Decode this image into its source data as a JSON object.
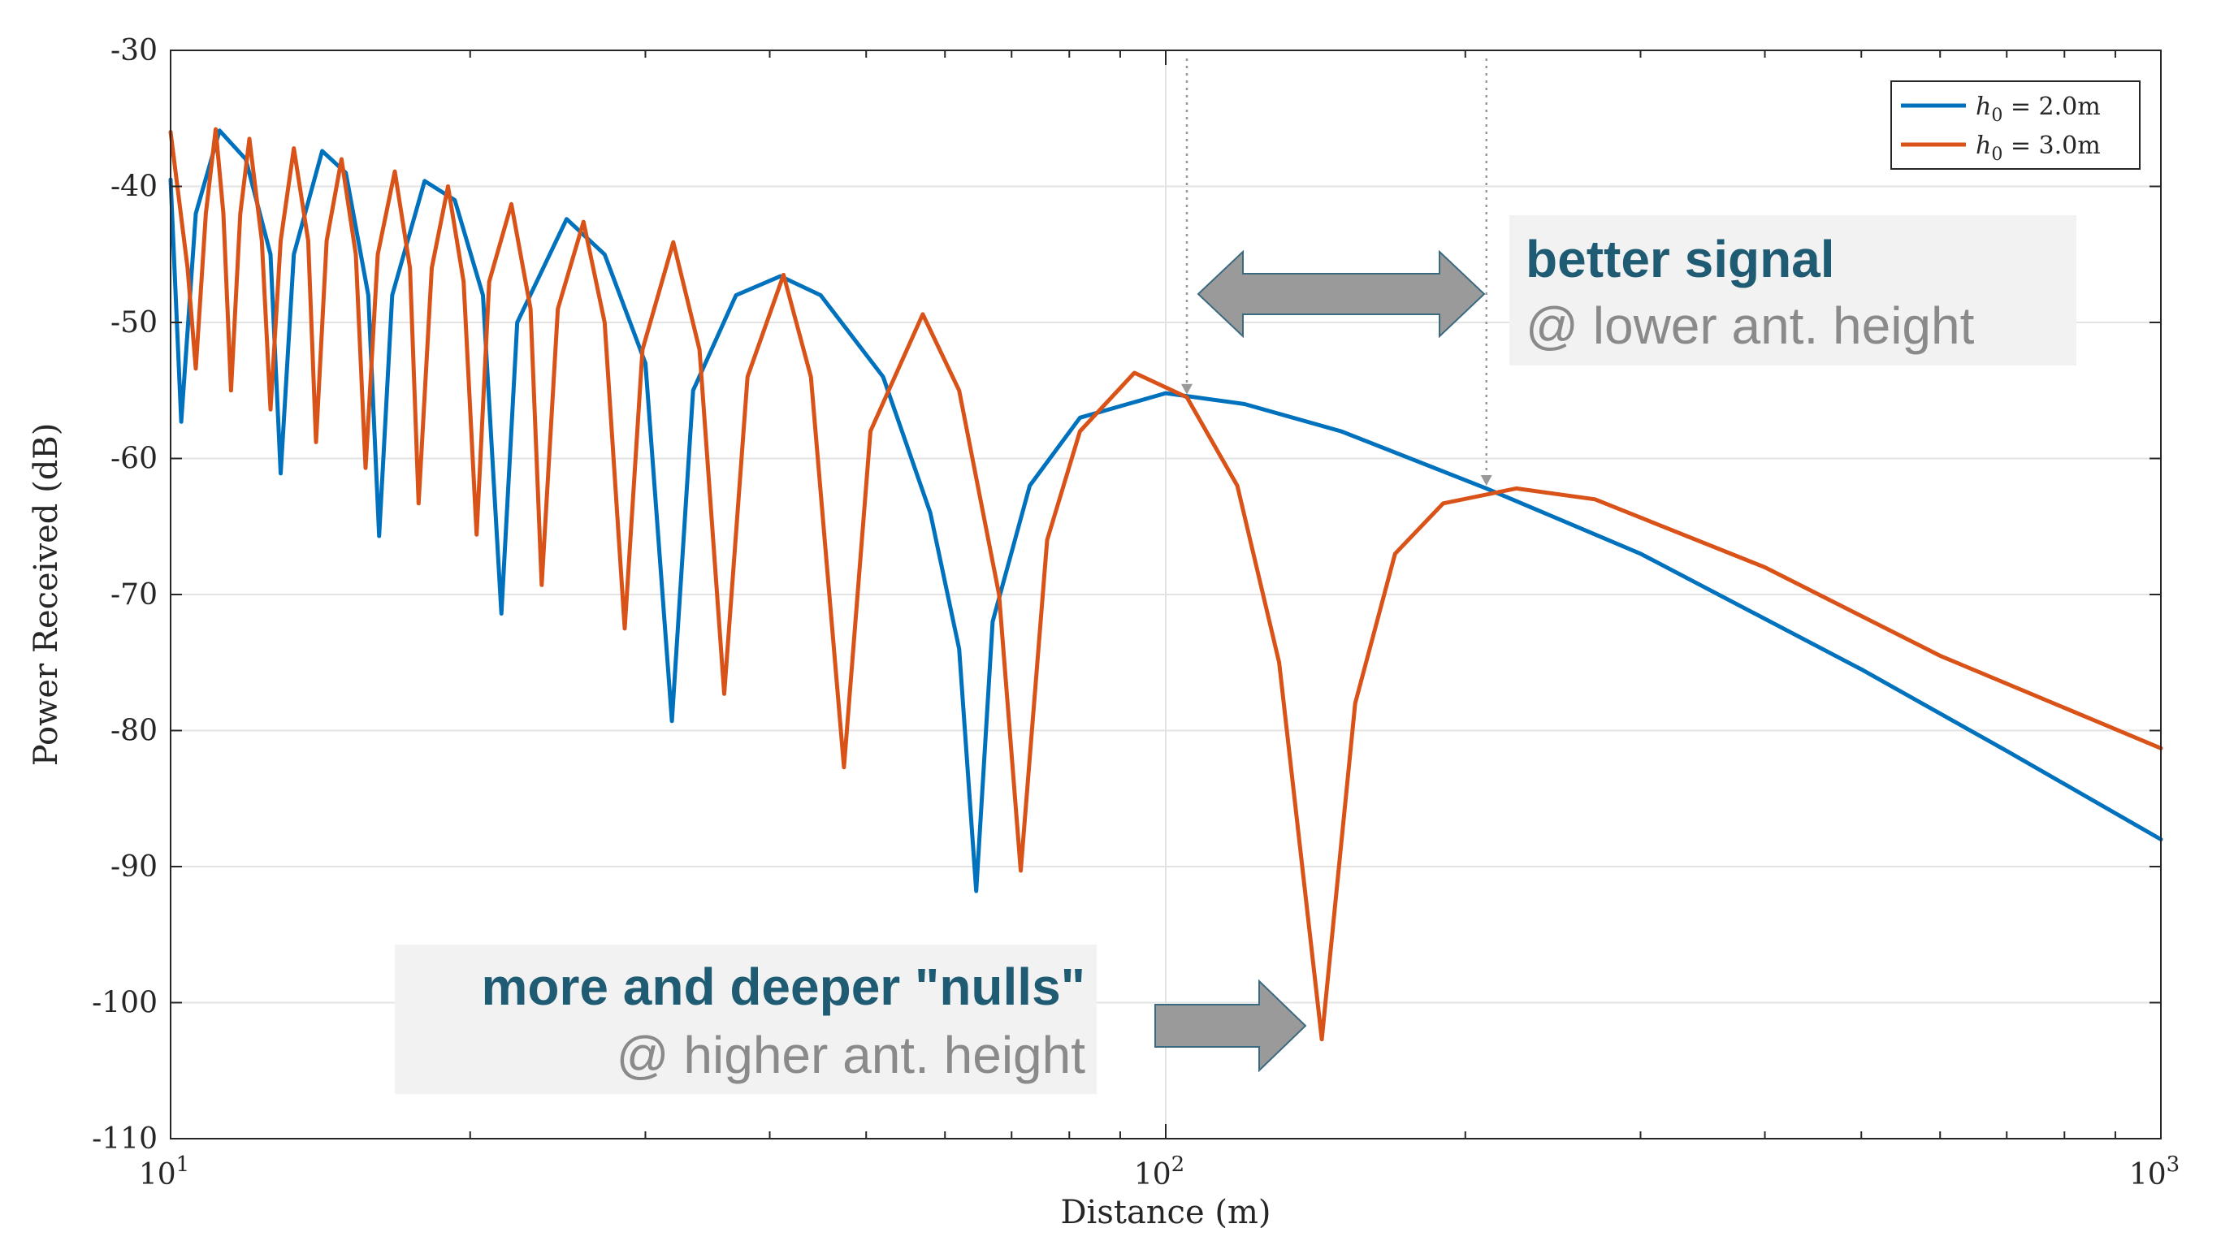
{
  "chart_data": {
    "type": "line",
    "xlabel": "Distance (m)",
    "ylabel": "Power Received (dB)",
    "xscale": "log",
    "xlim": [
      10,
      1000
    ],
    "ylim": [
      -110,
      -30
    ],
    "grid": true,
    "legend_position": "top-right",
    "x_ticks": [
      {
        "value": 10,
        "base": "10",
        "exp": "1"
      },
      {
        "value": 100,
        "base": "10",
        "exp": "2"
      },
      {
        "value": 1000,
        "base": "10",
        "exp": "3"
      }
    ],
    "y_ticks": [
      -30,
      -40,
      -50,
      -60,
      -70,
      -80,
      -90,
      -100,
      -110
    ],
    "y_tick_labels": [
      "-30",
      "-40",
      "-50",
      "-60",
      "-70",
      "-80",
      "-90",
      "-100",
      "-110"
    ],
    "series": [
      {
        "name": "h0 = 2.0m",
        "legend_var": "h",
        "legend_sub": "0",
        "legend_rest": " = 2.0m",
        "color": "#0072BD",
        "points": [
          [
            10,
            -39.5
          ],
          [
            10.25,
            -57.3
          ],
          [
            10.6,
            -42
          ],
          [
            11.2,
            -35.9
          ],
          [
            11.9,
            -38
          ],
          [
            12.6,
            -45
          ],
          [
            12.9,
            -61.1
          ],
          [
            13.3,
            -45
          ],
          [
            14.2,
            -37.4
          ],
          [
            15.0,
            -39
          ],
          [
            15.8,
            -48
          ],
          [
            16.2,
            -65.7
          ],
          [
            16.7,
            -48
          ],
          [
            18.0,
            -39.6
          ],
          [
            19.3,
            -41
          ],
          [
            20.6,
            -48
          ],
          [
            21.5,
            -71.4
          ],
          [
            22.3,
            -50
          ],
          [
            25.0,
            -42.4
          ],
          [
            27.3,
            -45
          ],
          [
            30.0,
            -53
          ],
          [
            31.9,
            -79.3
          ],
          [
            33.5,
            -55
          ],
          [
            37.0,
            -48
          ],
          [
            41.0,
            -46.6
          ],
          [
            45.0,
            -48
          ],
          [
            52.0,
            -54
          ],
          [
            58.0,
            -64
          ],
          [
            62.0,
            -74
          ],
          [
            64.5,
            -91.8
          ],
          [
            67.0,
            -72
          ],
          [
            73.0,
            -62
          ],
          [
            82.0,
            -57
          ],
          [
            100,
            -55.2
          ],
          [
            120,
            -56
          ],
          [
            150,
            -58
          ],
          [
            210,
            -62.2
          ],
          [
            300,
            -67
          ],
          [
            500,
            -75.5
          ],
          [
            700,
            -81.5
          ],
          [
            1000,
            -88
          ]
        ]
      },
      {
        "name": "h0 = 3.0m",
        "legend_var": "h",
        "legend_sub": "0",
        "legend_rest": " = 3.0m",
        "color": "#D95319",
        "points": [
          [
            10,
            -36
          ],
          [
            10.4,
            -46
          ],
          [
            10.6,
            -53.4
          ],
          [
            10.85,
            -42
          ],
          [
            11.1,
            -35.8
          ],
          [
            11.3,
            -42
          ],
          [
            11.5,
            -55
          ],
          [
            11.75,
            -42
          ],
          [
            12.0,
            -36.5
          ],
          [
            12.35,
            -44
          ],
          [
            12.6,
            -56.4
          ],
          [
            12.9,
            -44
          ],
          [
            13.3,
            -37.2
          ],
          [
            13.75,
            -44
          ],
          [
            14.0,
            -58.8
          ],
          [
            14.35,
            -44
          ],
          [
            14.85,
            -38
          ],
          [
            15.35,
            -45
          ],
          [
            15.7,
            -60.7
          ],
          [
            16.15,
            -45
          ],
          [
            16.8,
            -38.9
          ],
          [
            17.4,
            -46
          ],
          [
            17.75,
            -63.3
          ],
          [
            18.3,
            -46
          ],
          [
            19.0,
            -40
          ],
          [
            19.7,
            -47
          ],
          [
            20.3,
            -65.6
          ],
          [
            20.9,
            -47
          ],
          [
            22.0,
            -41.3
          ],
          [
            23.0,
            -49
          ],
          [
            23.6,
            -69.3
          ],
          [
            24.5,
            -49
          ],
          [
            26.0,
            -42.6
          ],
          [
            27.3,
            -50
          ],
          [
            28.6,
            -72.5
          ],
          [
            29.8,
            -52
          ],
          [
            32.0,
            -44.1
          ],
          [
            34.0,
            -52
          ],
          [
            36.0,
            -77.3
          ],
          [
            38.0,
            -54
          ],
          [
            41.3,
            -46.5
          ],
          [
            44.0,
            -54
          ],
          [
            47.5,
            -82.7
          ],
          [
            50.5,
            -58
          ],
          [
            57.0,
            -49.4
          ],
          [
            62.0,
            -55
          ],
          [
            68.0,
            -70
          ],
          [
            71.5,
            -90.3
          ],
          [
            76.0,
            -66
          ],
          [
            82.0,
            -58
          ],
          [
            93.0,
            -53.7
          ],
          [
            105,
            -55.5
          ],
          [
            118,
            -62
          ],
          [
            130,
            -75
          ],
          [
            143.5,
            -102.7
          ],
          [
            155,
            -78
          ],
          [
            170,
            -67
          ],
          [
            190,
            -63.3
          ],
          [
            225,
            -62.2
          ],
          [
            270,
            -63
          ],
          [
            400,
            -68
          ],
          [
            600,
            -74.5
          ],
          [
            1000,
            -81.3
          ]
        ]
      }
    ],
    "reference_markers": [
      {
        "x": 105,
        "y": -55.6
      },
      {
        "x": 210,
        "y": -62.3
      }
    ]
  },
  "annotations": {
    "better": {
      "title": "better signal",
      "subtitle": "@ lower ant. height"
    },
    "nulls": {
      "title": "more and deeper \"nulls\"",
      "subtitle": "@ higher ant. height"
    }
  }
}
